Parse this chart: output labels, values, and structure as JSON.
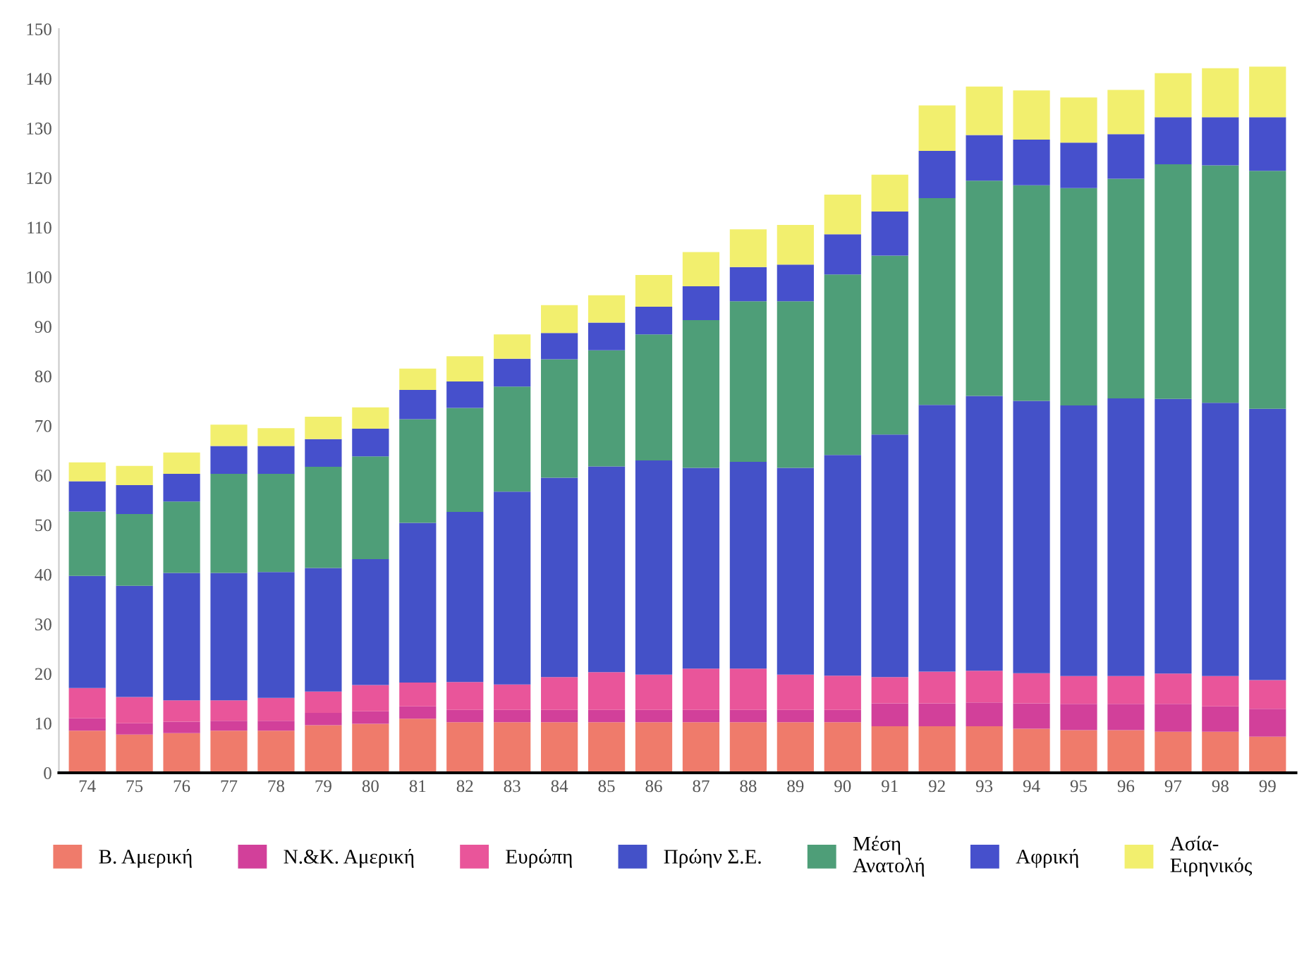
{
  "chart_data": {
    "type": "bar",
    "stacked": true,
    "categories": [
      "74",
      "75",
      "76",
      "77",
      "78",
      "79",
      "80",
      "81",
      "82",
      "83",
      "84",
      "85",
      "86",
      "87",
      "88",
      "89",
      "90",
      "91",
      "92",
      "93",
      "94",
      "95",
      "96",
      "97",
      "98",
      "99"
    ],
    "series": [
      {
        "name": "Β. Αμερική",
        "color": "#ef7b6b",
        "values": [
          8.5,
          7.7,
          8.0,
          8.5,
          8.5,
          9.6,
          9.9,
          10.9,
          10.2,
          10.2,
          10.2,
          10.2,
          10.2,
          10.2,
          10.2,
          10.2,
          10.2,
          9.4,
          9.4,
          9.4,
          8.9,
          8.6,
          8.6,
          8.3,
          8.3,
          7.3
        ]
      },
      {
        "name": "Ν.&Κ. Αμερική",
        "color": "#d2409a",
        "values": [
          2.5,
          2.3,
          2.3,
          2.0,
          2.0,
          2.5,
          2.5,
          2.5,
          2.5,
          2.5,
          2.5,
          2.5,
          2.5,
          2.5,
          2.5,
          2.5,
          2.5,
          4.6,
          4.6,
          4.8,
          5.1,
          5.3,
          5.3,
          5.6,
          5.1,
          5.6
        ]
      },
      {
        "name": "Ευρώπη",
        "color": "#e9559a",
        "values": [
          6.1,
          5.3,
          4.3,
          4.1,
          4.6,
          4.3,
          5.3,
          4.8,
          5.6,
          5.1,
          6.6,
          7.6,
          7.1,
          8.3,
          8.3,
          7.1,
          6.9,
          5.3,
          6.4,
          6.4,
          6.1,
          5.6,
          5.6,
          6.1,
          6.1,
          5.8
        ]
      },
      {
        "name": "Πρώην Σ.Ε.",
        "color": "#4451c8",
        "values": [
          22.6,
          22.4,
          25.7,
          25.7,
          25.4,
          24.9,
          25.4,
          32.2,
          34.3,
          38.9,
          40.2,
          41.5,
          43.2,
          40.5,
          41.7,
          41.7,
          44.5,
          48.9,
          53.8,
          55.4,
          54.9,
          54.6,
          56.0,
          55.4,
          55.1,
          54.7
        ]
      },
      {
        "name": "Μέση\nΑνατολή",
        "color": "#4e9e78",
        "values": [
          13.0,
          14.5,
          14.4,
          20.0,
          19.8,
          20.4,
          20.7,
          20.9,
          21.0,
          21.2,
          23.9,
          23.4,
          25.4,
          29.8,
          32.4,
          33.6,
          36.4,
          36.1,
          41.7,
          43.4,
          43.5,
          43.8,
          44.3,
          47.3,
          47.9,
          48.0
        ]
      },
      {
        "name": "Αφρική",
        "color": "#4650cc",
        "values": [
          6.1,
          5.8,
          5.6,
          5.6,
          5.6,
          5.6,
          5.6,
          5.9,
          5.3,
          5.6,
          5.3,
          5.6,
          5.6,
          6.8,
          6.9,
          7.4,
          8.1,
          8.9,
          9.5,
          9.2,
          9.2,
          9.2,
          9.0,
          9.5,
          9.7,
          10.8
        ]
      },
      {
        "name": "Ασία-\nΕιρηνικός",
        "color": "#f2ef6e",
        "values": [
          3.8,
          3.9,
          4.3,
          4.3,
          3.6,
          4.5,
          4.3,
          4.3,
          5.1,
          4.9,
          5.6,
          5.5,
          6.4,
          6.9,
          7.6,
          8.0,
          8.0,
          7.4,
          9.2,
          9.8,
          9.9,
          9.1,
          8.9,
          8.9,
          9.9,
          10.2
        ]
      }
    ],
    "ylim": [
      0,
      150
    ],
    "yticks": [
      0,
      10,
      20,
      30,
      40,
      50,
      60,
      70,
      80,
      90,
      100,
      110,
      120,
      130,
      140,
      150
    ],
    "grid": false,
    "legend": "bottom"
  }
}
